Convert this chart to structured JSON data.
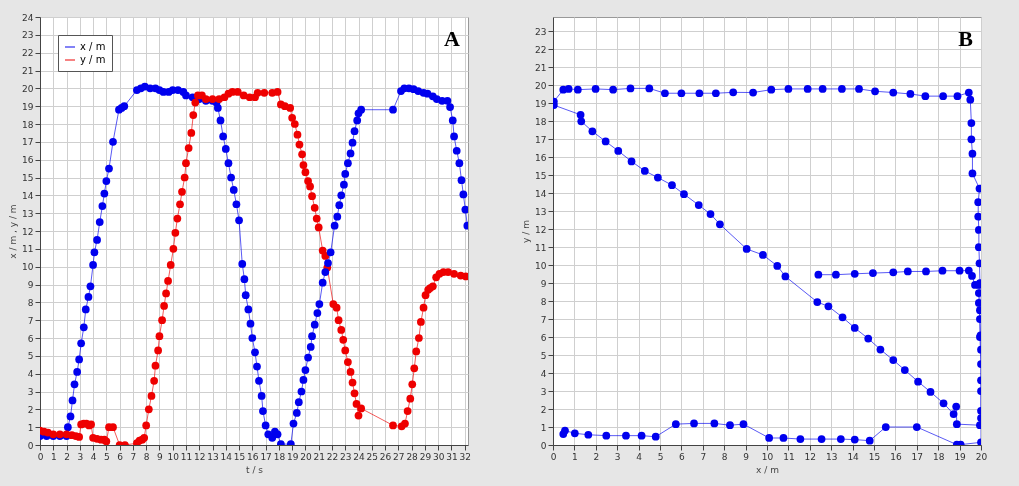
{
  "chart_data": [
    {
      "type": "line",
      "xlabel": "t / s",
      "ylabel": "x / m , y / m",
      "annotations": [
        "A"
      ],
      "xlim": [
        0,
        32.25
      ],
      "xticks": [
        0,
        1,
        2,
        3,
        4,
        5,
        6,
        7,
        8,
        9,
        10,
        11,
        12,
        13,
        14,
        15,
        16,
        17,
        18,
        19,
        20,
        21,
        22,
        23,
        24,
        25,
        26,
        27,
        28,
        29,
        30,
        31,
        32
      ],
      "ylim": [
        0,
        24
      ],
      "yticks": [
        0,
        1,
        2,
        3,
        4,
        5,
        6,
        7,
        8,
        9,
        10,
        11,
        12,
        13,
        14,
        15,
        16,
        17,
        18,
        19,
        20,
        21,
        22,
        23,
        24
      ],
      "grid": true,
      "legend": "top left",
      "marker": "circle",
      "line_style": "solid",
      "series": [
        {
          "name": "x / m",
          "color": "#0000ee",
          "x": [
            0,
            0.5,
            1,
            1.5,
            2,
            2.1,
            2.3,
            2.45,
            2.6,
            2.8,
            2.95,
            3.1,
            3.3,
            3.45,
            3.65,
            3.8,
            4.0,
            4.1,
            4.3,
            4.5,
            4.7,
            4.85,
            5.0,
            5.2,
            5.5,
            5.95,
            6.15,
            6.35,
            7.3,
            7.6,
            7.9,
            8.3,
            8.7,
            9.0,
            9.3,
            9.7,
            10.0,
            10.4,
            10.8,
            11.0,
            11.5,
            12.0,
            12.5,
            13.0,
            13.3,
            13.4,
            13.6,
            13.8,
            14.0,
            14.2,
            14.4,
            14.6,
            14.8,
            15.0,
            15.24,
            15.4,
            15.5,
            15.7,
            15.86,
            16.0,
            16.2,
            16.35,
            16.5,
            16.7,
            16.8,
            17.0,
            17.2,
            17.5,
            17.7,
            17.9,
            18.15,
            18.9,
            19.1,
            19.35,
            19.5,
            19.7,
            19.85,
            20.0,
            20.2,
            20.4,
            20.5,
            20.7,
            20.9,
            21.05,
            21.3,
            21.5,
            21.7,
            21.9,
            22.2,
            22.4,
            22.55,
            22.7,
            22.9,
            23.0,
            23.2,
            23.4,
            23.55,
            23.7,
            23.9,
            24.0,
            24.2,
            26.6,
            27.2,
            27.45,
            27.8,
            28.15,
            28.5,
            28.9,
            29.2,
            29.6,
            29.9,
            30.3,
            30.7,
            30.9,
            31.1,
            31.2,
            31.4,
            31.6,
            31.76,
            31.9,
            32.05,
            32.2
          ],
          "values": [
            0.5,
            0.5,
            0.5,
            0.5,
            0.5,
            1.0,
            1.6,
            2.5,
            3.4,
            4.1,
            4.8,
            5.7,
            6.6,
            7.6,
            8.3,
            8.9,
            10.1,
            10.8,
            11.5,
            12.5,
            13.4,
            14.1,
            14.8,
            15.5,
            17.0,
            18.8,
            18.9,
            19.0,
            19.9,
            20.0,
            20.1,
            20.0,
            20.0,
            19.9,
            19.8,
            19.8,
            19.9,
            19.9,
            19.8,
            19.6,
            19.5,
            19.4,
            19.3,
            19.3,
            19.2,
            18.9,
            18.2,
            17.3,
            16.6,
            15.8,
            15.0,
            14.3,
            13.5,
            12.6,
            10.15,
            9.3,
            8.4,
            7.6,
            6.8,
            6.0,
            5.2,
            4.4,
            3.6,
            2.75,
            1.9,
            1.1,
            0.6,
            0.4,
            0.75,
            0.6,
            0.05,
            0.05,
            1.2,
            1.8,
            2.4,
            3.0,
            3.65,
            4.2,
            4.9,
            5.5,
            6.1,
            6.75,
            7.4,
            7.9,
            9.1,
            9.7,
            10.2,
            10.8,
            12.3,
            12.8,
            13.45,
            14.0,
            14.6,
            15.2,
            15.8,
            16.35,
            16.95,
            17.6,
            18.2,
            18.6,
            18.8,
            18.8,
            19.85,
            20.0,
            20.0,
            19.95,
            19.85,
            19.75,
            19.7,
            19.55,
            19.4,
            19.3,
            19.3,
            18.95,
            18.2,
            17.3,
            16.5,
            15.8,
            14.85,
            14.05,
            13.2,
            12.3
          ]
        },
        {
          "name": "y / m",
          "color": "#ee0000",
          "x": [
            0,
            0.3,
            0.6,
            1,
            1.5,
            2,
            2.4,
            2.7,
            2.95,
            3.1,
            3.3,
            3.5,
            3.7,
            3.85,
            4.0,
            4.3,
            4.6,
            4.85,
            5.0,
            5.2,
            5.5,
            6.0,
            6.4,
            7.3,
            7.5,
            7.7,
            7.85,
            8.0,
            8.2,
            8.4,
            8.6,
            8.7,
            8.9,
            9.0,
            9.2,
            9.35,
            9.5,
            9.65,
            9.85,
            10.05,
            10.2,
            10.35,
            10.55,
            10.7,
            10.9,
            11.0,
            11.2,
            11.4,
            11.55,
            11.7,
            11.9,
            12.2,
            12.5,
            13.0,
            13.5,
            13.9,
            14.2,
            14.5,
            14.9,
            15.35,
            15.8,
            16.2,
            16.4,
            16.9,
            17.5,
            17.9,
            18.15,
            18.45,
            18.85,
            19.0,
            19.2,
            19.4,
            19.55,
            19.75,
            19.85,
            20.0,
            20.2,
            20.35,
            20.5,
            20.7,
            20.85,
            21.0,
            21.3,
            21.5,
            21.65,
            22.1,
            22.35,
            22.5,
            22.7,
            22.85,
            23.0,
            23.2,
            23.4,
            23.55,
            23.7,
            23.85,
            24.0,
            24.2,
            26.6,
            27.25,
            27.5,
            27.7,
            27.9,
            28.05,
            28.2,
            28.35,
            28.55,
            28.7,
            28.9,
            29.05,
            29.25,
            29.4,
            29.6,
            29.85,
            30.1,
            30.4,
            30.75,
            31.2,
            31.7,
            32.1
          ],
          "values": [
            0.8,
            0.75,
            0.7,
            0.6,
            0.6,
            0.6,
            0.55,
            0.5,
            0.45,
            1.15,
            1.2,
            1.2,
            1.1,
            1.15,
            0.4,
            0.35,
            0.3,
            0.3,
            0.2,
            1.0,
            1.0,
            0.0,
            0.0,
            0.1,
            0.25,
            0.3,
            0.4,
            1.1,
            2.0,
            2.75,
            3.6,
            4.45,
            5.3,
            6.1,
            7.0,
            7.8,
            8.5,
            9.2,
            10.1,
            11.0,
            11.9,
            12.7,
            13.5,
            14.2,
            15.0,
            15.8,
            16.65,
            17.5,
            18.5,
            19.2,
            19.6,
            19.6,
            19.4,
            19.4,
            19.4,
            19.5,
            19.7,
            19.8,
            19.8,
            19.6,
            19.5,
            19.5,
            19.75,
            19.75,
            19.75,
            19.8,
            19.1,
            19.0,
            18.9,
            18.35,
            18.0,
            17.4,
            16.85,
            16.3,
            15.7,
            15.3,
            14.8,
            14.5,
            13.95,
            13.3,
            12.7,
            12.2,
            10.9,
            10.6,
            9.95,
            7.9,
            7.7,
            7.0,
            6.45,
            5.9,
            5.3,
            4.65,
            4.1,
            3.5,
            2.9,
            2.3,
            1.65,
            2.05,
            1.1,
            1.05,
            1.2,
            1.9,
            2.6,
            3.4,
            4.3,
            5.25,
            6.0,
            6.9,
            7.7,
            8.4,
            8.7,
            8.8,
            8.9,
            9.4,
            9.6,
            9.7,
            9.7,
            9.6,
            9.5,
            9.45
          ]
        }
      ]
    },
    {
      "type": "line",
      "xlabel": "x / m",
      "ylabel": "y / m",
      "annotations": [
        "B"
      ],
      "xlim": [
        0,
        20
      ],
      "xticks": [
        0,
        1,
        2,
        3,
        4,
        5,
        6,
        7,
        8,
        9,
        10,
        11,
        12,
        13,
        14,
        15,
        16,
        17,
        18,
        19,
        20
      ],
      "ylim": [
        0,
        23.8
      ],
      "yticks": [
        0,
        1,
        2,
        3,
        4,
        5,
        6,
        7,
        8,
        9,
        10,
        11,
        12,
        13,
        14,
        15,
        16,
        17,
        18,
        19,
        20,
        21,
        22,
        23
      ],
      "grid": true,
      "marker": "circle",
      "line_style": "solid",
      "series": [
        {
          "color": "#0000ee",
          "x": [
            0.48,
            0.56,
            1.02,
            1.65,
            2.49,
            3.41,
            4.14,
            4.8,
            5.74,
            6.59,
            7.54,
            8.27,
            8.9,
            10.1,
            10.77,
            11.56,
            12.55,
            13.45,
            14.1,
            14.8,
            15.55,
            17.0,
            18.87,
            19.05,
            20.0,
            20.0,
            20.0,
            20.0,
            19.95,
            19.95,
            19.95,
            19.93,
            19.9,
            19.9,
            19.87,
            19.87,
            19.93,
            19.6,
            19.6,
            19.55,
            19.55,
            19.5,
            19.43,
            18.9,
            18.23,
            17.4,
            16.7,
            15.9,
            15.05,
            14.3,
            13.5,
            12.6,
            11.9,
            11.0,
            10.2,
            9.35,
            8.42,
            7.61,
            6.84,
            6.0,
            5.23,
            4.5,
            3.62,
            2.81,
            1.99,
            1.16,
            0.73,
            0.48,
            0.04,
            0.04,
            1.29,
            1.32,
            1.84,
            2.46,
            3.05,
            3.67,
            4.29,
            4.9,
            5.56,
            6.12,
            6.81,
            7.36,
            7.8,
            9.05,
            9.81,
            10.48,
            10.86,
            12.35,
            12.87,
            13.53,
            14.1,
            14.73,
            15.3,
            15.9,
            16.44,
            17.06,
            17.64,
            18.25,
            18.72,
            18.84,
            18.87,
            19.95,
            20.0,
            20.0,
            20.0,
            19.98,
            19.95,
            19.9,
            19.9,
            19.9,
            19.72,
            19.58,
            19.43,
            19.0,
            18.2,
            17.43,
            16.58,
            15.9,
            14.95,
            14.1,
            13.22,
            12.4
          ],
          "values": [
            0.61,
            0.8,
            0.65,
            0.57,
            0.52,
            0.52,
            0.52,
            0.46,
            1.16,
            1.2,
            1.2,
            1.1,
            1.16,
            0.39,
            0.39,
            0.33,
            0.33,
            0.33,
            0.3,
            0.24,
            1.0,
            1.0,
            0.02,
            0.02,
            0.15,
            1.5,
            3.0,
            4.5,
            6.0,
            7.5,
            9.0,
            10.1,
            11.0,
            11.96,
            12.7,
            13.5,
            14.26,
            15.1,
            16.2,
            17.0,
            17.9,
            19.2,
            19.6,
            19.4,
            19.4,
            19.4,
            19.52,
            19.6,
            19.67,
            19.8,
            19.8,
            19.8,
            19.8,
            19.8,
            19.76,
            19.6,
            19.61,
            19.56,
            19.56,
            19.56,
            19.56,
            19.83,
            19.83,
            19.76,
            19.8,
            19.76,
            19.8,
            19.76,
            19.1,
            18.9,
            18.36,
            18.0,
            17.44,
            16.88,
            16.35,
            15.77,
            15.24,
            14.87,
            14.45,
            13.95,
            13.34,
            12.84,
            12.27,
            10.9,
            10.57,
            9.96,
            9.37,
            7.95,
            7.71,
            7.1,
            6.51,
            5.92,
            5.31,
            4.72,
            4.17,
            3.52,
            2.95,
            2.32,
            1.72,
            2.14,
            1.16,
            1.1,
            1.9,
            3.6,
            5.3,
            6.1,
            7.0,
            7.9,
            8.45,
            8.9,
            8.9,
            9.4,
            9.7,
            9.69,
            9.69,
            9.65,
            9.65,
            9.6,
            9.56,
            9.52,
            9.47,
            9.47
          ]
        }
      ]
    }
  ]
}
